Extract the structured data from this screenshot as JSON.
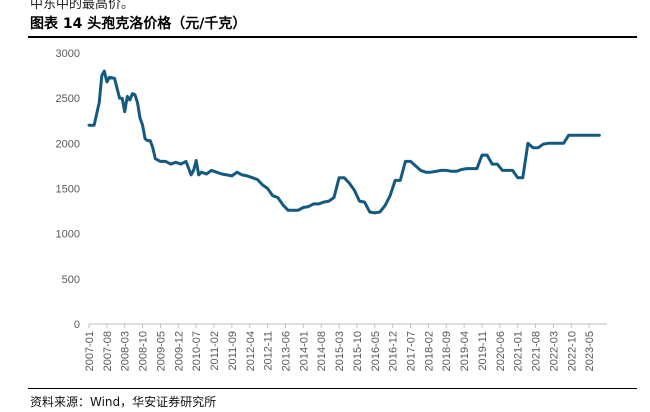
{
  "page": {
    "top_cut_text": "中东中的最高价。",
    "title": "图表 14 头孢克洛价格（元/千克）",
    "source": "资料来源：Wind，华安证券研究所"
  },
  "colors": {
    "line": "#145a80",
    "axis": "#bfbfbf",
    "tick": "#595959"
  },
  "chart_data": {
    "type": "line",
    "title": "图表 14 头孢克洛价格（元/千克）",
    "xlabel": "",
    "ylabel": "",
    "ylim": [
      0,
      3000
    ],
    "yticks": [
      0,
      500,
      1000,
      1500,
      2000,
      2500,
      3000
    ],
    "grid": false,
    "legend": "none",
    "x_range": [
      "2007-01",
      "2023-12"
    ],
    "xtick_labels": [
      "2007-01",
      "2007-08",
      "2008-03",
      "2008-10",
      "2009-05",
      "2009-12",
      "2010-07",
      "2011-02",
      "2011-09",
      "2012-04",
      "2012-11",
      "2013-06",
      "2014-01",
      "2014-08",
      "2015-03",
      "2015-10",
      "2016-05",
      "2016-12",
      "2017-07",
      "2018-02",
      "2018-09",
      "2019-04",
      "2019-11",
      "2020-06",
      "2021-01",
      "2021-08",
      "2022-03",
      "2022-10",
      "2023-05"
    ],
    "series": [
      {
        "name": "",
        "x": [
          "2007-01",
          "2007-03",
          "2007-05",
          "2007-06",
          "2007-07",
          "2007-08",
          "2007-09",
          "2007-11",
          "2008-01",
          "2008-02",
          "2008-03",
          "2008-04",
          "2008-05",
          "2008-06",
          "2008-07",
          "2008-08",
          "2008-09",
          "2008-10",
          "2008-11",
          "2008-12",
          "2009-01",
          "2009-02",
          "2009-03",
          "2009-05",
          "2009-07",
          "2009-09",
          "2009-11",
          "2010-01",
          "2010-03",
          "2010-05",
          "2010-06",
          "2010-07",
          "2010-08",
          "2010-09",
          "2010-11",
          "2011-01",
          "2011-03",
          "2011-05",
          "2011-07",
          "2011-09",
          "2011-11",
          "2012-01",
          "2012-03",
          "2012-05",
          "2012-07",
          "2012-09",
          "2012-11",
          "2013-01",
          "2013-03",
          "2013-05",
          "2013-07",
          "2013-09",
          "2013-11",
          "2014-01",
          "2014-03",
          "2014-05",
          "2014-07",
          "2014-09",
          "2014-11",
          "2015-01",
          "2015-03",
          "2015-05",
          "2015-07",
          "2015-09",
          "2015-11",
          "2016-01",
          "2016-03",
          "2016-05",
          "2016-07",
          "2016-09",
          "2016-11",
          "2017-01",
          "2017-03",
          "2017-05",
          "2017-07",
          "2017-09",
          "2017-11",
          "2018-01",
          "2018-03",
          "2018-05",
          "2018-07",
          "2018-09",
          "2018-11",
          "2019-01",
          "2019-03",
          "2019-05",
          "2019-07",
          "2019-09",
          "2019-11",
          "2020-01",
          "2020-03",
          "2020-05",
          "2020-07",
          "2020-09",
          "2020-11",
          "2021-01",
          "2021-03",
          "2021-05",
          "2021-07",
          "2021-09",
          "2021-11",
          "2022-01",
          "2022-03",
          "2022-05",
          "2022-07",
          "2022-09",
          "2022-11",
          "2023-01",
          "2023-03",
          "2023-05",
          "2023-07",
          "2023-09"
        ],
        "values": [
          2200,
          2200,
          2450,
          2750,
          2800,
          2680,
          2730,
          2720,
          2500,
          2500,
          2350,
          2520,
          2480,
          2550,
          2540,
          2450,
          2280,
          2200,
          2050,
          2030,
          2030,
          1950,
          1830,
          1800,
          1800,
          1770,
          1790,
          1770,
          1800,
          1650,
          1700,
          1810,
          1650,
          1680,
          1660,
          1700,
          1680,
          1660,
          1650,
          1640,
          1680,
          1650,
          1640,
          1620,
          1600,
          1540,
          1500,
          1420,
          1400,
          1320,
          1260,
          1260,
          1260,
          1290,
          1300,
          1330,
          1330,
          1350,
          1360,
          1400,
          1620,
          1620,
          1560,
          1480,
          1360,
          1350,
          1240,
          1230,
          1240,
          1310,
          1420,
          1590,
          1590,
          1800,
          1800,
          1750,
          1700,
          1680,
          1680,
          1690,
          1700,
          1700,
          1690,
          1690,
          1710,
          1720,
          1720,
          1720,
          1870,
          1870,
          1770,
          1770,
          1700,
          1700,
          1700,
          1620,
          1620,
          2000,
          1950,
          1950,
          1990,
          2000,
          2000,
          2000,
          2000,
          2090,
          2090,
          2090,
          2090,
          2090,
          2090,
          2090
        ],
        "color": "#145a80"
      }
    ]
  }
}
